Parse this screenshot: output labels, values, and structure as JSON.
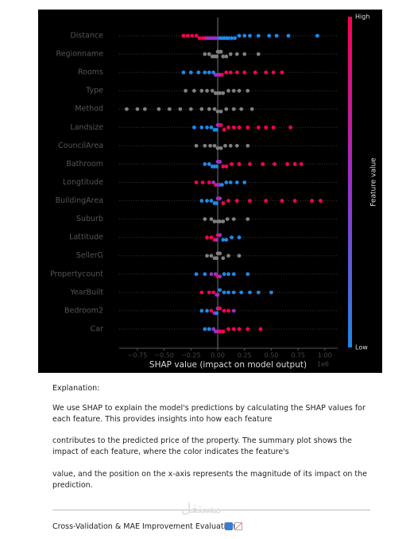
{
  "chart_data": {
    "type": "beeswarm",
    "xlabel": "SHAP value (impact on model output)",
    "x_offset_label": "1e6",
    "xlim": [
      -0.92,
      1.12
    ],
    "xticks": [
      {
        "value": -0.75,
        "label": "−0.75"
      },
      {
        "value": -0.5,
        "label": "−0.50"
      },
      {
        "value": -0.25,
        "label": "−0.25"
      },
      {
        "value": 0,
        "label": "0.00"
      },
      {
        "value": 0.25,
        "label": "0.25"
      },
      {
        "value": 0.5,
        "label": "0.50"
      },
      {
        "value": 0.75,
        "label": "0.75"
      },
      {
        "value": 1,
        "label": "1.00"
      }
    ],
    "colorbar": {
      "high": "High",
      "low": "Low",
      "label": "Feature value",
      "colors": [
        "#1e88e5",
        "#9b30c8",
        "#ff0052"
      ]
    },
    "series": [
      {
        "name": "Distance",
        "values": [
          -0.32,
          -0.28,
          -0.24,
          -0.2,
          -0.17,
          -0.14,
          -0.12,
          -0.1,
          -0.08,
          -0.06,
          -0.04,
          -0.02,
          0,
          0.02,
          0.04,
          0.06,
          0.08,
          0.1,
          0.13,
          0.16,
          0.2,
          0.25,
          0.3,
          0.38,
          0.48,
          0.55,
          0.66,
          0.93
        ],
        "colors": [
          "#ff0052",
          "#ff0052",
          "#ff0052",
          "#ff0052",
          "#ff0052",
          "#ff0052",
          "#ff0052",
          "#9b30c8",
          "#9b30c8",
          "#9b30c8",
          "#9b30c8",
          "#9b30c8",
          "#9b30c8",
          "#1e88e5",
          "#1e88e5",
          "#1e88e5",
          "#1e88e5",
          "#1e88e5",
          "#1e88e5",
          "#1e88e5",
          "#1e88e5",
          "#1e88e5",
          "#1e88e5",
          "#1e88e5",
          "#1e88e5",
          "#1e88e5",
          "#1e88e5",
          "#1e88e5"
        ]
      },
      {
        "name": "Regionname",
        "values": [
          -0.12,
          -0.08,
          -0.05,
          -0.03,
          -0.01,
          0,
          0.01,
          0.03,
          0.05,
          0.08,
          0.12,
          0.18,
          0.25,
          0.38
        ],
        "colors": [
          "#7f7f7f",
          "#7f7f7f",
          "#7f7f7f",
          "#7f7f7f",
          "#7f7f7f",
          "#7f7f7f",
          "#7f7f7f",
          "#7f7f7f",
          "#7f7f7f",
          "#7f7f7f",
          "#7f7f7f",
          "#7f7f7f",
          "#7f7f7f",
          "#7f7f7f"
        ]
      },
      {
        "name": "Rooms",
        "values": [
          -0.32,
          -0.25,
          -0.18,
          -0.12,
          -0.08,
          -0.04,
          -0.02,
          0,
          0.02,
          0.04,
          0.08,
          0.12,
          0.18,
          0.25,
          0.35,
          0.45,
          0.52,
          0.6
        ],
        "colors": [
          "#1e88e5",
          "#1e88e5",
          "#1e88e5",
          "#1e88e5",
          "#1e88e5",
          "#1e88e5",
          "#9b30c8",
          "#9b30c8",
          "#9b30c8",
          "#ff0052",
          "#ff0052",
          "#ff0052",
          "#ff0052",
          "#ff0052",
          "#ff0052",
          "#ff0052",
          "#ff0052",
          "#ff0052"
        ]
      },
      {
        "name": "Type",
        "values": [
          -0.3,
          -0.22,
          -0.15,
          -0.1,
          -0.05,
          -0.02,
          0,
          0.02,
          0.05,
          0.1,
          0.15,
          0.2,
          0.28
        ],
        "colors": [
          "#7f7f7f",
          "#7f7f7f",
          "#7f7f7f",
          "#7f7f7f",
          "#7f7f7f",
          "#7f7f7f",
          "#7f7f7f",
          "#7f7f7f",
          "#7f7f7f",
          "#7f7f7f",
          "#7f7f7f",
          "#7f7f7f",
          "#7f7f7f"
        ]
      },
      {
        "name": "Method",
        "values": [
          -0.85,
          -0.75,
          -0.68,
          -0.55,
          -0.45,
          -0.35,
          -0.25,
          -0.15,
          -0.08,
          -0.03,
          0,
          0.03,
          0.08,
          0.15,
          0.22,
          0.32
        ],
        "colors": [
          "#7f7f7f",
          "#7f7f7f",
          "#7f7f7f",
          "#7f7f7f",
          "#7f7f7f",
          "#7f7f7f",
          "#7f7f7f",
          "#7f7f7f",
          "#7f7f7f",
          "#7f7f7f",
          "#7f7f7f",
          "#7f7f7f",
          "#7f7f7f",
          "#7f7f7f",
          "#7f7f7f",
          "#7f7f7f"
        ]
      },
      {
        "name": "Landsize",
        "values": [
          -0.22,
          -0.15,
          -0.1,
          -0.06,
          -0.03,
          -0.01,
          0,
          0.01,
          0.03,
          0.06,
          0.1,
          0.15,
          0.2,
          0.28,
          0.38,
          0.45,
          0.52,
          0.68
        ],
        "colors": [
          "#1e88e5",
          "#1e88e5",
          "#1e88e5",
          "#1e88e5",
          "#1e88e5",
          "#1e88e5",
          "#9b30c8",
          "#9b30c8",
          "#ff0052",
          "#ff0052",
          "#ff0052",
          "#ff0052",
          "#ff0052",
          "#ff0052",
          "#ff0052",
          "#ff0052",
          "#ff0052",
          "#ff0052"
        ]
      },
      {
        "name": "CouncilArea",
        "values": [
          -0.2,
          -0.12,
          -0.07,
          -0.03,
          0,
          0.03,
          0.07,
          0.12,
          0.18,
          0.28
        ],
        "colors": [
          "#7f7f7f",
          "#7f7f7f",
          "#7f7f7f",
          "#7f7f7f",
          "#7f7f7f",
          "#7f7f7f",
          "#7f7f7f",
          "#7f7f7f",
          "#7f7f7f",
          "#7f7f7f"
        ]
      },
      {
        "name": "Bathroom",
        "values": [
          -0.12,
          -0.08,
          -0.05,
          -0.03,
          -0.01,
          0,
          0.02,
          0.05,
          0.08,
          0.13,
          0.2,
          0.3,
          0.42,
          0.53,
          0.65,
          0.72,
          0.78
        ],
        "colors": [
          "#1e88e5",
          "#1e88e5",
          "#1e88e5",
          "#1e88e5",
          "#1e88e5",
          "#9b30c8",
          "#9b30c8",
          "#ff0052",
          "#ff0052",
          "#ff0052",
          "#ff0052",
          "#ff0052",
          "#ff0052",
          "#ff0052",
          "#ff0052",
          "#ff0052",
          "#ff0052"
        ]
      },
      {
        "name": "Longtitude",
        "values": [
          -0.2,
          -0.14,
          -0.08,
          -0.04,
          -0.02,
          0,
          0.02,
          0.04,
          0.08,
          0.12,
          0.18,
          0.25
        ],
        "colors": [
          "#ff0052",
          "#ff0052",
          "#ff0052",
          "#9b30c8",
          "#ff0052",
          "#9b30c8",
          "#9b30c8",
          "#1e88e5",
          "#1e88e5",
          "#1e88e5",
          "#1e88e5",
          "#1e88e5"
        ]
      },
      {
        "name": "BuildingArea",
        "values": [
          -0.15,
          -0.1,
          -0.06,
          -0.03,
          -0.01,
          0,
          0.02,
          0.05,
          0.1,
          0.18,
          0.3,
          0.45,
          0.6,
          0.72,
          0.88,
          0.96
        ],
        "colors": [
          "#1e88e5",
          "#1e88e5",
          "#1e88e5",
          "#1e88e5",
          "#1e88e5",
          "#9b30c8",
          "#9b30c8",
          "#ff0052",
          "#ff0052",
          "#ff0052",
          "#ff0052",
          "#ff0052",
          "#ff0052",
          "#ff0052",
          "#ff0052",
          "#ff0052"
        ]
      },
      {
        "name": "Suburb",
        "values": [
          -0.12,
          -0.06,
          -0.03,
          0,
          0.02,
          0.05,
          0.09,
          0.15,
          0.28
        ],
        "colors": [
          "#7f7f7f",
          "#7f7f7f",
          "#7f7f7f",
          "#7f7f7f",
          "#7f7f7f",
          "#7f7f7f",
          "#7f7f7f",
          "#7f7f7f",
          "#7f7f7f"
        ]
      },
      {
        "name": "Lattitude",
        "values": [
          -0.1,
          -0.06,
          -0.03,
          -0.01,
          0,
          0.02,
          0.05,
          0.08,
          0.13,
          0.2
        ],
        "colors": [
          "#ff0052",
          "#ff0052",
          "#ff0052",
          "#9b30c8",
          "#ff0052",
          "#9b30c8",
          "#1e88e5",
          "#1e88e5",
          "#1e88e5",
          "#1e88e5"
        ]
      },
      {
        "name": "SellerG",
        "values": [
          -0.1,
          -0.06,
          -0.03,
          -0.01,
          0,
          0.02,
          0.05,
          0.1,
          0.2
        ],
        "colors": [
          "#7f7f7f",
          "#7f7f7f",
          "#7f7f7f",
          "#7f7f7f",
          "#7f7f7f",
          "#7f7f7f",
          "#7f7f7f",
          "#7f7f7f",
          "#7f7f7f"
        ]
      },
      {
        "name": "Propertycount",
        "values": [
          -0.2,
          -0.12,
          -0.06,
          -0.02,
          0,
          0.02,
          0.06,
          0.1,
          0.15,
          0.28
        ],
        "colors": [
          "#1e88e5",
          "#1e88e5",
          "#9b30c8",
          "#9b30c8",
          "#ff0052",
          "#9b30c8",
          "#1e88e5",
          "#1e88e5",
          "#1e88e5",
          "#1e88e5"
        ]
      },
      {
        "name": "YearBuilt",
        "values": [
          -0.15,
          -0.08,
          -0.04,
          -0.01,
          0,
          0.02,
          0.06,
          0.1,
          0.15,
          0.22,
          0.3,
          0.38,
          0.5
        ],
        "colors": [
          "#ff0052",
          "#ff0052",
          "#ff0052",
          "#9b30c8",
          "#9b30c8",
          "#1e88e5",
          "#1e88e5",
          "#1e88e5",
          "#1e88e5",
          "#1e88e5",
          "#1e88e5",
          "#1e88e5",
          "#1e88e5"
        ]
      },
      {
        "name": "Bedroom2",
        "values": [
          -0.15,
          -0.1,
          -0.06,
          -0.03,
          -0.01,
          0,
          0.02,
          0.06,
          0.1,
          0.15
        ],
        "colors": [
          "#1e88e5",
          "#1e88e5",
          "#ff0052",
          "#9b30c8",
          "#1e88e5",
          "#9b30c8",
          "#ff0052",
          "#ff0052",
          "#ff0052",
          "#9b30c8"
        ]
      },
      {
        "name": "Car",
        "values": [
          -0.12,
          -0.08,
          -0.04,
          -0.02,
          0,
          0.02,
          0.05,
          0.1,
          0.15,
          0.2,
          0.28,
          0.4
        ],
        "colors": [
          "#1e88e5",
          "#1e88e5",
          "#9b30c8",
          "#9b30c8",
          "#9b30c8",
          "#ff0052",
          "#ff0052",
          "#ff0052",
          "#ff0052",
          "#ff0052",
          "#ff0052",
          "#ff0052"
        ]
      }
    ]
  },
  "document": {
    "heading": "Explanation:",
    "paragraphs": [
      "We use SHAP to explain the model's predictions by calculating the SHAP values for each feature. This provides insights into how each feature",
      "contributes to the predicted price of the property. The summary plot shows the impact of each feature, where the color indicates the feature's",
      "value, and the position on the x-axis represents the magnitude of its impact on the prediction."
    ],
    "watermark": "مستقل",
    "footer": "Cross-Validation & MAE Improvement Evaluation"
  }
}
